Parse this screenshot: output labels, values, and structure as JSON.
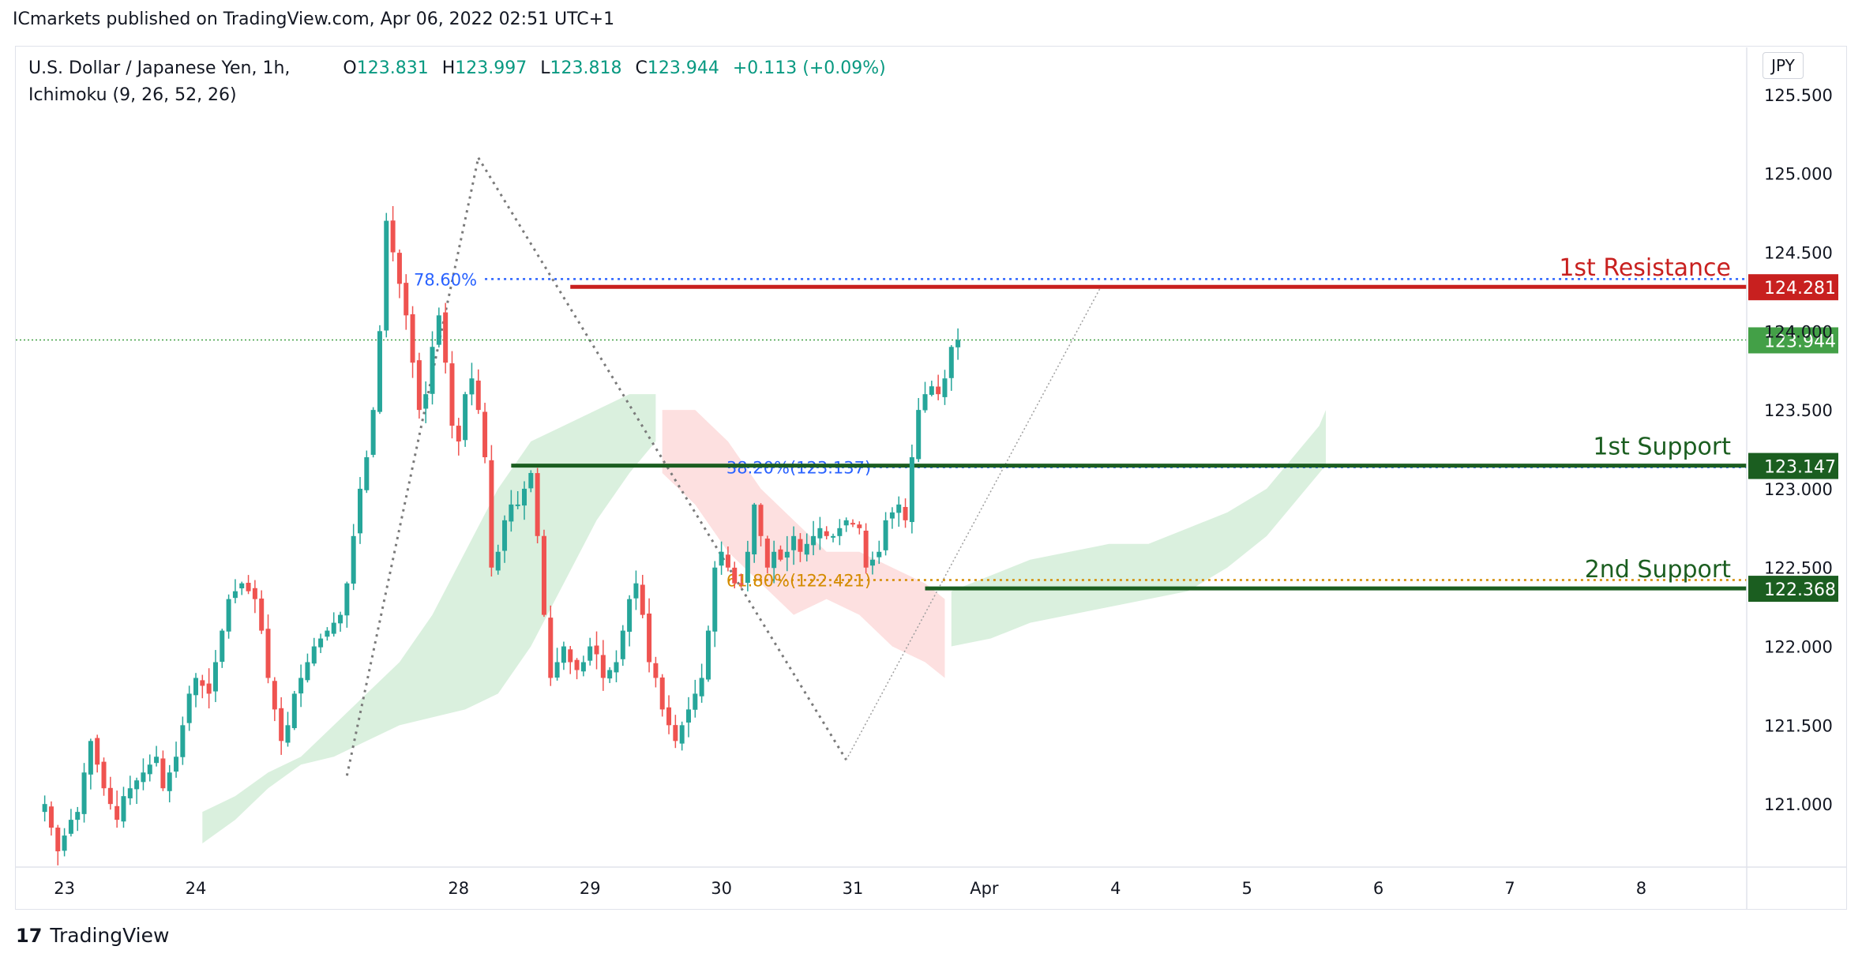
{
  "header": {
    "publisher_line": "ICmarkets published on TradingView.com, Apr 06, 2022 02:51 UTC+1"
  },
  "legend": {
    "symbol": "U.S. Dollar / Japanese Yen, 1h,",
    "open_label": "O",
    "open": "123.831",
    "high_label": "H",
    "high": "123.997",
    "low_label": "L",
    "low": "123.818",
    "close_label": "C",
    "close": "123.944",
    "change": "+0.113 (+0.09%)",
    "indicator": "Ichimoku (9, 26, 52, 26)"
  },
  "currency_button": "JPY",
  "footer": {
    "brand": "TradingView",
    "logo_text": "17"
  },
  "colors": {
    "up": "#26a69a",
    "down": "#ef5350",
    "resistance": "#c8201f",
    "support": "#1b5e20",
    "fib_blue": "#2962ff",
    "fib_orange": "#d48b00",
    "cloud_green": "#cdebd3",
    "cloud_red": "#fcd5d5",
    "last_price": "#43a047"
  },
  "chart_data": {
    "type": "candlestick",
    "title": "U.S. Dollar / Japanese Yen, 1h",
    "ylim": [
      120.6,
      125.8
    ],
    "x_ticks": [
      {
        "label": "23",
        "bar": 5
      },
      {
        "label": "24",
        "bar": 25
      },
      {
        "label": "28",
        "bar": 65
      },
      {
        "label": "29",
        "bar": 85
      },
      {
        "label": "30",
        "bar": 105
      },
      {
        "label": "31",
        "bar": 125
      },
      {
        "label": "Apr",
        "bar": 145
      },
      {
        "label": "4",
        "bar": 165
      },
      {
        "label": "5",
        "bar": 185
      },
      {
        "label": "6",
        "bar": 205
      },
      {
        "label": "7",
        "bar": 225
      },
      {
        "label": "8",
        "bar": 245
      }
    ],
    "y_ticks": [
      "125.500",
      "125.000",
      "124.500",
      "123.500",
      "123.000",
      "122.500",
      "122.000",
      "121.500",
      "121.000"
    ],
    "y_tick_values": [
      125.5,
      125.0,
      124.5,
      123.5,
      123.0,
      122.5,
      122.0,
      121.5,
      121.0
    ],
    "price_path": [
      121.0,
      120.85,
      120.7,
      120.8,
      120.9,
      120.95,
      121.2,
      121.4,
      121.25,
      121.1,
      121.0,
      120.9,
      121.05,
      121.1,
      121.15,
      121.2,
      121.25,
      121.3,
      121.1,
      121.2,
      121.3,
      121.5,
      121.7,
      121.8,
      121.75,
      121.7,
      121.9,
      122.1,
      122.3,
      122.35,
      122.4,
      122.35,
      122.3,
      122.1,
      121.8,
      121.6,
      121.4,
      121.5,
      121.7,
      121.8,
      121.9,
      122.0,
      122.05,
      122.1,
      122.15,
      122.2,
      122.4,
      122.7,
      123.0,
      123.2,
      123.5,
      124.0,
      124.7,
      124.5,
      124.3,
      124.1,
      123.8,
      123.5,
      123.6,
      123.9,
      124.1,
      123.8,
      123.4,
      123.3,
      123.6,
      123.7,
      123.5,
      123.2,
      122.5,
      122.6,
      122.8,
      122.9,
      122.9,
      123.0,
      123.1,
      122.7,
      122.2,
      121.8,
      121.9,
      122.0,
      121.9,
      121.85,
      121.9,
      122.0,
      121.95,
      121.8,
      121.85,
      121.9,
      122.1,
      122.3,
      122.4,
      122.2,
      121.9,
      121.8,
      121.6,
      121.5,
      121.4,
      121.5,
      121.6,
      121.7,
      121.8,
      122.1,
      122.5,
      122.6,
      122.5,
      122.4,
      122.4,
      122.6,
      122.9,
      122.7,
      122.5,
      122.6,
      122.55,
      122.6,
      122.7,
      122.6,
      122.65,
      122.7,
      122.75,
      122.7,
      122.7,
      122.75,
      122.8,
      122.78,
      122.75,
      122.5,
      122.55,
      122.6,
      122.8,
      122.85,
      122.9,
      122.8,
      123.2,
      123.5,
      123.6,
      123.65,
      123.6,
      123.7,
      123.9,
      123.944
    ],
    "path_start_bar": 2,
    "ichimoku_cloud": [
      {
        "color": "green",
        "points": [
          [
            26,
            120.95
          ],
          [
            31,
            121.05
          ],
          [
            36,
            121.2
          ],
          [
            41,
            121.3
          ],
          [
            46,
            121.5
          ],
          [
            51,
            121.7
          ],
          [
            56,
            121.9
          ],
          [
            61,
            122.2
          ],
          [
            66,
            122.6
          ],
          [
            71,
            123.0
          ],
          [
            76,
            123.3
          ],
          [
            81,
            123.4
          ],
          [
            86,
            123.5
          ],
          [
            91,
            123.6
          ],
          [
            95,
            123.6
          ],
          [
            95,
            123.3
          ],
          [
            91,
            123.1
          ],
          [
            86,
            122.8
          ],
          [
            81,
            122.4
          ],
          [
            76,
            122.0
          ],
          [
            71,
            121.7
          ],
          [
            66,
            121.6
          ],
          [
            61,
            121.55
          ],
          [
            56,
            121.5
          ],
          [
            51,
            121.4
          ],
          [
            46,
            121.3
          ],
          [
            41,
            121.25
          ],
          [
            36,
            121.1
          ],
          [
            31,
            120.9
          ],
          [
            26,
            120.75
          ]
        ]
      },
      {
        "color": "red",
        "points": [
          [
            96,
            123.5
          ],
          [
            101,
            123.5
          ],
          [
            106,
            123.3
          ],
          [
            111,
            123.0
          ],
          [
            116,
            122.8
          ],
          [
            121,
            122.6
          ],
          [
            126,
            122.6
          ],
          [
            131,
            122.5
          ],
          [
            136,
            122.4
          ],
          [
            139,
            122.3
          ],
          [
            139,
            121.8
          ],
          [
            136,
            121.9
          ],
          [
            131,
            122.0
          ],
          [
            126,
            122.2
          ],
          [
            121,
            122.3
          ],
          [
            116,
            122.2
          ],
          [
            111,
            122.4
          ],
          [
            106,
            122.6
          ],
          [
            101,
            122.9
          ],
          [
            96,
            123.1
          ]
        ]
      },
      {
        "color": "green",
        "points": [
          [
            140,
            122.35
          ],
          [
            146,
            122.45
          ],
          [
            152,
            122.55
          ],
          [
            158,
            122.6
          ],
          [
            164,
            122.65
          ],
          [
            170,
            122.65
          ],
          [
            176,
            122.75
          ],
          [
            182,
            122.85
          ],
          [
            188,
            123.0
          ],
          [
            192,
            123.2
          ],
          [
            196,
            123.4
          ],
          [
            197,
            123.5
          ],
          [
            197,
            123.15
          ],
          [
            192,
            122.9
          ],
          [
            188,
            122.7
          ],
          [
            182,
            122.5
          ],
          [
            176,
            122.35
          ],
          [
            170,
            122.3
          ],
          [
            164,
            122.25
          ],
          [
            158,
            122.2
          ],
          [
            152,
            122.15
          ],
          [
            146,
            122.05
          ],
          [
            140,
            122.0
          ]
        ]
      }
    ],
    "levels": [
      {
        "name": "1st Resistance",
        "value": 124.281,
        "label": "124.281",
        "from_bar": 82,
        "color": "resistance"
      },
      {
        "name": "1st Support",
        "value": 123.147,
        "label": "123.147",
        "from_bar": 73,
        "color": "support"
      },
      {
        "name": "2nd Support",
        "value": 122.368,
        "label": "122.368",
        "from_bar": 136,
        "color": "support"
      }
    ],
    "fib_lines": [
      {
        "label": "78.60%",
        "value": 124.33,
        "from_bar": 69,
        "color": "fib_blue"
      },
      {
        "label": "38.20%(123.137)",
        "value": 123.137,
        "from_bar": 106,
        "color": "fib_blue"
      },
      {
        "label": "61.80%(122.421)",
        "value": 122.421,
        "from_bar": 106,
        "color": "fib_orange"
      }
    ],
    "trend_lines": [
      {
        "from": [
          48,
          121.18
        ],
        "to": [
          68,
          125.1
        ]
      },
      {
        "from": [
          68,
          125.1
        ],
        "to": [
          124,
          121.28
        ]
      },
      {
        "from": [
          124,
          121.28
        ],
        "to": [
          163,
          124.3
        ]
      }
    ],
    "last_price": {
      "value": 123.944,
      "label": "123.944",
      "next_label": "124.000"
    }
  }
}
